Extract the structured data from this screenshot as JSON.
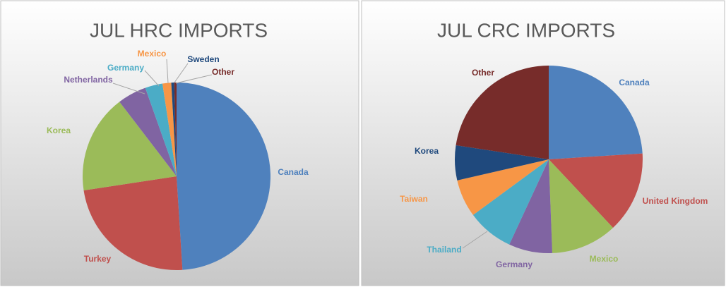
{
  "chart_data": [
    {
      "type": "pie",
      "title": "JUL HRC IMPORTS",
      "categories": [
        "Canada",
        "Turkey",
        "Korea",
        "Netherlands",
        "Germany",
        "Mexico",
        "Sweden",
        "Other"
      ],
      "values": [
        49,
        23.6,
        17,
        5,
        3,
        1.5,
        0.5,
        0.4
      ],
      "colors": [
        "#4f81bd",
        "#c0504d",
        "#9bbb59",
        "#8064a2",
        "#4bacc6",
        "#f79646",
        "#1f497d",
        "#772c2a"
      ]
    },
    {
      "type": "pie",
      "title": "JUL CRC IMPORTS",
      "categories": [
        "Canada",
        "United Kingdom",
        "Mexico",
        "Germany",
        "Thailand",
        "Taiwan",
        "Korea",
        "Other"
      ],
      "values": [
        24,
        14,
        11.4,
        7.5,
        8,
        6.5,
        6,
        22.6
      ],
      "colors": [
        "#4f81bd",
        "#c0504d",
        "#9bbb59",
        "#8064a2",
        "#4bacc6",
        "#f79646",
        "#1f497d",
        "#772c2a"
      ]
    }
  ]
}
